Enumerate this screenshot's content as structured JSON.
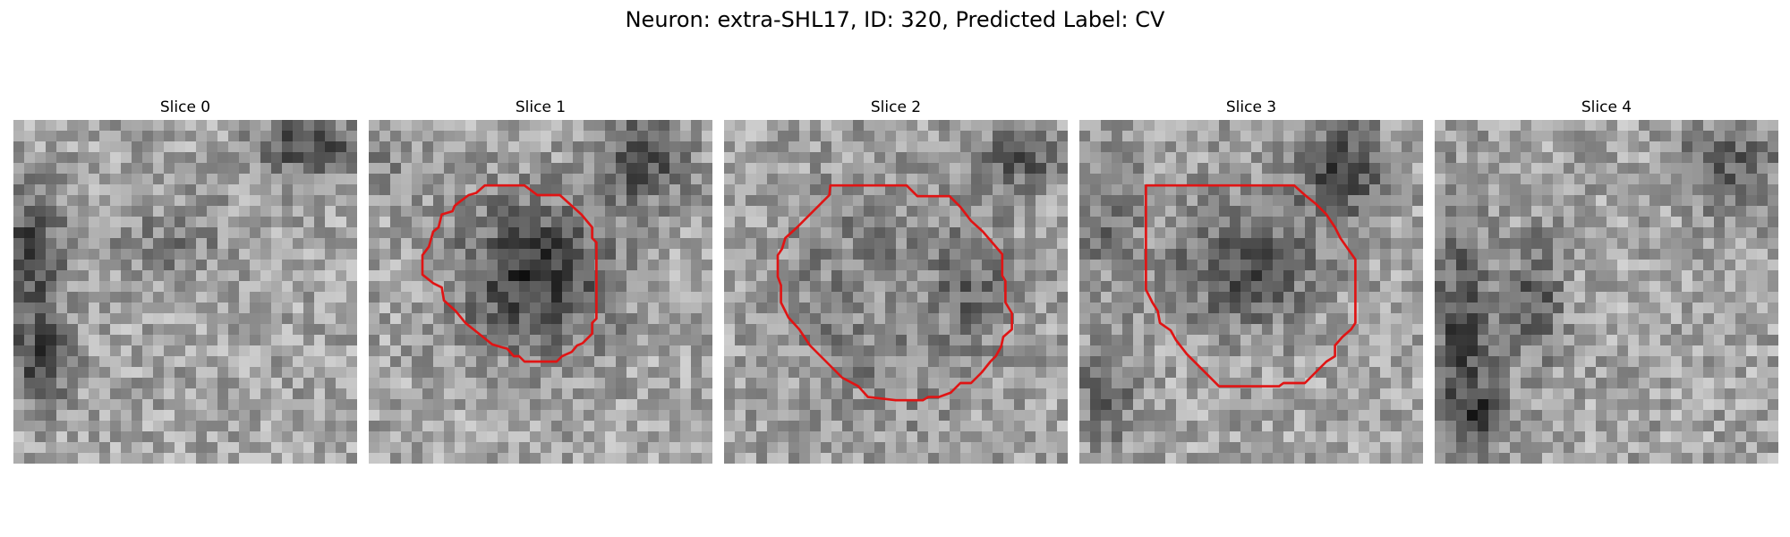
{
  "figure": {
    "title": "Neuron: extra-SHL17, ID: 320, Predicted Label: CV"
  },
  "colors": {
    "contour": "#e01414",
    "background": "#ffffff"
  },
  "panels": [
    {
      "title": "Slice 0",
      "has_contour": false
    },
    {
      "title": "Slice 1",
      "has_contour": true
    },
    {
      "title": "Slice 2",
      "has_contour": true
    },
    {
      "title": "Slice 3",
      "has_contour": true
    },
    {
      "title": "Slice 4",
      "has_contour": true
    }
  ]
}
